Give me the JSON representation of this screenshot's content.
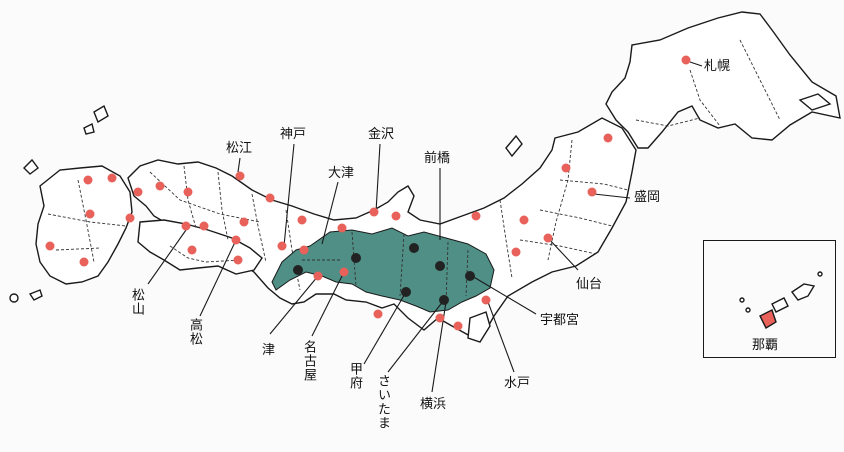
{
  "colors": {
    "capital_dot": "#e8615a",
    "highlight_region": "#4f8f86",
    "dark_dot": "#222222",
    "outline": "#1a1a1a"
  },
  "labels": {
    "sapporo": "札幌",
    "morioka": "盛岡",
    "sendai": "仙台",
    "utsunomiya": "宇都宮",
    "mito": "水戸",
    "yokohama": "横浜",
    "saitama": "さいたま",
    "kofu": "甲府",
    "nagoya": "名古屋",
    "tsu": "津",
    "takamatsu": "高松",
    "matsuyama": "松山",
    "kobe": "神戸",
    "matsue": "松江",
    "otsu": "大津",
    "kanazawa": "金沢",
    "maebashi": "前橋",
    "naha": "那覇"
  }
}
